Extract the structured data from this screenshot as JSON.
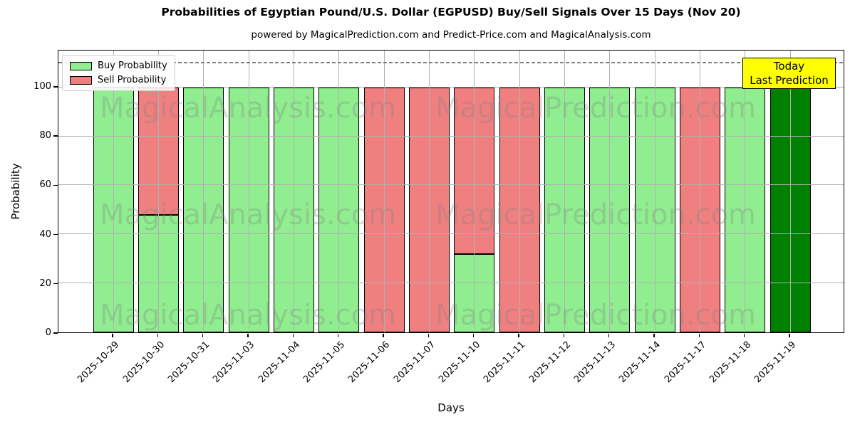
{
  "title": "Probabilities of Egyptian Pound/U.S. Dollar (EGPUSD) Buy/Sell Signals Over 15 Days (Nov 20)",
  "subtitle": "powered by MagicalPrediction.com and Predict-Price.com and MagicalAnalysis.com",
  "xlabel": "Days",
  "ylabel": "Probability",
  "legend": {
    "items": [
      {
        "label": "Buy Probability",
        "color": "#90EE90"
      },
      {
        "label": "Sell Probability",
        "color": "#F08080"
      }
    ]
  },
  "annotation": {
    "line1": "Today",
    "line2": "Last Prediction",
    "bg_color": "#FFFF00"
  },
  "watermarks": {
    "left_text": "MagicalAnalysis.com",
    "right_text": "MagicalPrediction.com"
  },
  "colors": {
    "buy": "#90EE90",
    "sell": "#F08080",
    "today": "#008000",
    "edge": "#000000",
    "grid": "#b0b0b0",
    "dashed_line": "#808080",
    "annotation_bg": "#FFFF00"
  },
  "chart_data": {
    "type": "bar",
    "stacked": true,
    "title": "Probabilities of Egyptian Pound/U.S. Dollar (EGPUSD) Buy/Sell Signals Over 15 Days (Nov 20)",
    "subtitle": "powered by MagicalPrediction.com and Predict-Price.com and MagicalAnalysis.com",
    "xlabel": "Days",
    "ylabel": "Probability",
    "categories": [
      "2025-10-29",
      "2025-10-30",
      "2025-10-31",
      "2025-11-03",
      "2025-11-04",
      "2025-11-05",
      "2025-11-06",
      "2025-11-07",
      "2025-11-10",
      "2025-11-11",
      "2025-11-12",
      "2025-11-13",
      "2025-11-14",
      "2025-11-17",
      "2025-11-18",
      "2025-11-19"
    ],
    "series": [
      {
        "name": "Buy Probability",
        "color": "#90EE90",
        "values": [
          100,
          48,
          100,
          100,
          100,
          100,
          0,
          0,
          32,
          0,
          100,
          100,
          100,
          0,
          100,
          100
        ]
      },
      {
        "name": "Sell Probability",
        "color": "#F08080",
        "values": [
          0,
          52,
          0,
          0,
          0,
          0,
          100,
          100,
          68,
          100,
          0,
          0,
          0,
          100,
          0,
          0
        ]
      }
    ],
    "today_bar": {
      "index": 15,
      "category": "2025-11-19",
      "value": 100,
      "color": "#008000",
      "note": "Today Last Prediction"
    },
    "yticks": [
      0,
      20,
      40,
      60,
      80,
      100
    ],
    "ylim": [
      0,
      115
    ],
    "threshold_line": {
      "y": 110,
      "style": "dashed",
      "color": "#808080"
    },
    "grid": true,
    "legend_position": "upper left"
  }
}
